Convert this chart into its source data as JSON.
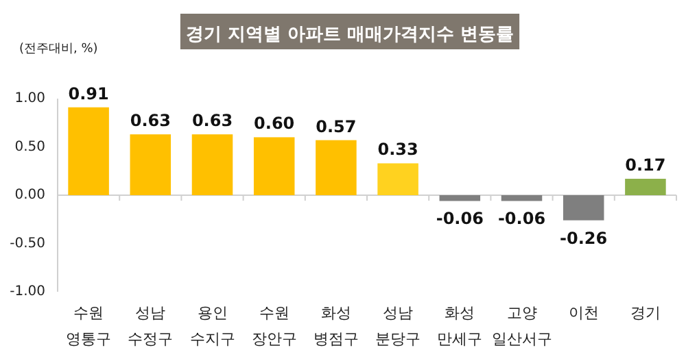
{
  "chart_data": {
    "type": "bar",
    "title": "경기 지역별 아파트 매매가격지수 변동률",
    "ylabel": "(전주대비, %)",
    "categories": [
      "수원\n영통구",
      "성남\n수정구",
      "용인\n수지구",
      "수원\n장안구",
      "화성\n병점구",
      "성남\n분당구",
      "화성\n만세구",
      "고양\n일산서구",
      "이천",
      "경기"
    ],
    "values": [
      0.91,
      0.63,
      0.63,
      0.6,
      0.57,
      0.33,
      -0.06,
      -0.06,
      -0.26,
      0.17
    ],
    "colors": [
      "#ffc000",
      "#ffc000",
      "#ffc000",
      "#ffc000",
      "#ffc000",
      "#ffd21f",
      "#7f7f7f",
      "#7f7f7f",
      "#7f7f7f",
      "#8cb04a"
    ],
    "value_labels": [
      "0.91",
      "0.63",
      "0.63",
      "0.60",
      "0.57",
      "0.33",
      "-0.06",
      "-0.06",
      "-0.26",
      "0.17"
    ],
    "ylim": [
      -1.0,
      1.0
    ],
    "yticks": [
      {
        "value": -1.0,
        "label": "-1.00"
      },
      {
        "value": -0.5,
        "label": "-0.50"
      },
      {
        "value": 0.0,
        "label": "0.00"
      },
      {
        "value": 0.5,
        "label": "0.50"
      },
      {
        "value": 1.0,
        "label": "1.00"
      }
    ]
  }
}
